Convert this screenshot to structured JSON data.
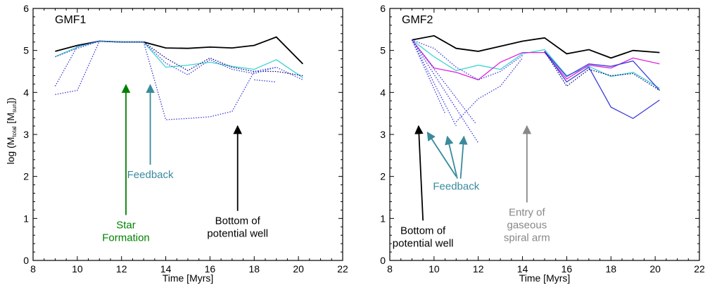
{
  "chart_data": [
    {
      "type": "line",
      "title": "GMF1",
      "xlabel": "Time [Myrs]",
      "ylabel": "log (M_total [M_sun])",
      "xlim": [
        8,
        22
      ],
      "ylim": [
        0,
        6
      ],
      "xticks": [
        "8",
        "10",
        "12",
        "14",
        "16",
        "18",
        "20",
        "22"
      ],
      "yticks": [
        "0",
        "1",
        "2",
        "3",
        "4",
        "5",
        "6"
      ],
      "series": [
        {
          "color": "#000000",
          "style": "solid",
          "x": [
            9,
            10,
            11,
            12,
            13,
            14,
            15,
            16,
            17,
            18,
            19,
            20.2
          ],
          "y": [
            4.98,
            5.12,
            5.22,
            5.2,
            5.2,
            5.06,
            5.05,
            5.08,
            5.06,
            5.12,
            5.32,
            4.68
          ]
        },
        {
          "color": "#3fd4d0",
          "style": "solid",
          "x": [
            9,
            10,
            11,
            12,
            13,
            14,
            15,
            16,
            17,
            18,
            19,
            20.2
          ],
          "y": [
            4.85,
            5.08,
            5.22,
            5.2,
            5.2,
            4.6,
            4.65,
            4.72,
            4.62,
            4.55,
            4.78,
            4.35
          ]
        },
        {
          "color": "#000080",
          "style": "dotted",
          "x": [
            11,
            12,
            13,
            14,
            15,
            16,
            17,
            18,
            19,
            20.2
          ],
          "y": [
            5.22,
            5.2,
            5.2,
            4.82,
            4.52,
            4.82,
            4.6,
            4.5,
            4.5,
            4.4
          ]
        },
        {
          "color": "#3b3bdb",
          "style": "dotted",
          "x": [
            9,
            10,
            11,
            12,
            13,
            14,
            15,
            16,
            17,
            18,
            19,
            20.2
          ],
          "y": [
            4.85,
            5.05,
            5.22,
            5.2,
            5.2,
            4.7,
            4.42,
            4.78,
            4.55,
            4.45,
            4.6,
            4.3
          ]
        },
        {
          "color": "#3b3bdb",
          "style": "dotted",
          "x": [
            9,
            10,
            11
          ],
          "y": [
            3.95,
            4.05,
            5.22
          ]
        },
        {
          "color": "#3b3bdb",
          "style": "dotted",
          "x": [
            9,
            10,
            11
          ],
          "y": [
            4.15,
            5.1,
            5.22
          ]
        },
        {
          "color": "#3b3bdb",
          "style": "dotted",
          "x": [
            13,
            14,
            15,
            16,
            17,
            18,
            19
          ],
          "y": [
            5.2,
            3.35,
            3.38,
            3.42,
            3.55,
            4.5,
            4.6
          ]
        },
        {
          "color": "#3b3bdb",
          "style": "dotted",
          "x": [
            18,
            19
          ],
          "y": [
            4.3,
            4.25
          ]
        }
      ],
      "annotations": [
        {
          "lines": [
            "Star",
            "Formation"
          ],
          "color": "#008000",
          "arrow_tip": [
            12.2,
            4.18
          ],
          "arrow_tail": [
            12.2,
            1.08
          ]
        },
        {
          "lines": [
            "Feedback"
          ],
          "color": "#3a8a9c",
          "arrow_tip": [
            13.3,
            4.18
          ],
          "arrow_tail": [
            13.3,
            2.28
          ]
        },
        {
          "lines": [
            "Bottom  of",
            "potential  well"
          ],
          "color": "#000000",
          "arrow_tip": [
            17.25,
            3.2
          ],
          "arrow_tail": [
            17.25,
            1.18
          ]
        }
      ]
    },
    {
      "type": "line",
      "title": "GMF2",
      "xlabel": "Time [Myrs]",
      "ylabel": "",
      "xlim": [
        8,
        22
      ],
      "ylim": [
        0,
        6
      ],
      "xticks": [
        "8",
        "10",
        "12",
        "14",
        "16",
        "18",
        "20",
        "22"
      ],
      "yticks": [
        "0",
        "1",
        "2",
        "3",
        "4",
        "5",
        "6"
      ],
      "series": [
        {
          "color": "#000000",
          "style": "solid",
          "x": [
            9,
            10,
            11,
            12,
            13,
            14,
            15,
            16,
            17,
            18,
            19,
            20.2
          ],
          "y": [
            5.25,
            5.35,
            5.05,
            4.98,
            5.1,
            5.22,
            5.3,
            4.92,
            5.02,
            4.82,
            5.0,
            4.95
          ]
        },
        {
          "color": "#3fd4d0",
          "style": "solid",
          "x": [
            9,
            10,
            11,
            12,
            13,
            14,
            15,
            16,
            17,
            18,
            19,
            20.2
          ],
          "y": [
            5.25,
            4.85,
            4.52,
            4.65,
            4.55,
            4.92,
            5.02,
            4.4,
            4.62,
            4.38,
            4.48,
            4.1
          ]
        },
        {
          "color": "#dd22dd",
          "style": "solid",
          "x": [
            9,
            10,
            11,
            12,
            13,
            14,
            15,
            16,
            17,
            18,
            19,
            20.2
          ],
          "y": [
            5.25,
            4.58,
            4.48,
            4.3,
            4.72,
            4.95,
            4.95,
            4.32,
            4.65,
            4.58,
            4.82,
            4.68
          ]
        },
        {
          "color": "#3b3bdb",
          "style": "solid",
          "x": [
            15,
            16,
            17,
            18,
            19,
            20.2
          ],
          "y": [
            4.98,
            4.38,
            4.68,
            4.62,
            4.75,
            4.05
          ]
        },
        {
          "color": "#3b3bdb",
          "style": "solid",
          "x": [
            15,
            16,
            17,
            18,
            19,
            20.2
          ],
          "y": [
            4.98,
            4.25,
            4.6,
            3.65,
            3.38,
            3.82
          ]
        },
        {
          "color": "#000080",
          "style": "dotted",
          "x": [
            15,
            16,
            17,
            18,
            19,
            20.2
          ],
          "y": [
            4.98,
            4.15,
            4.55,
            4.4,
            4.45,
            4.05
          ]
        },
        {
          "color": "#3b3bdb",
          "style": "dotted",
          "x": [
            9,
            10.5
          ],
          "y": [
            5.25,
            3.5
          ]
        },
        {
          "color": "#3b3bdb",
          "style": "dotted",
          "x": [
            9,
            11
          ],
          "y": [
            5.25,
            3.2
          ]
        },
        {
          "color": "#3b3bdb",
          "style": "dotted",
          "x": [
            9,
            11.9
          ],
          "y": [
            5.25,
            3.25
          ]
        },
        {
          "color": "#3b3bdb",
          "style": "dotted",
          "x": [
            9,
            12
          ],
          "y": [
            5.25,
            2.8
          ]
        },
        {
          "color": "#3b3bdb",
          "style": "dotted",
          "x": [
            9,
            10,
            11,
            12,
            13,
            14
          ],
          "y": [
            5.25,
            5.05,
            4.6,
            4.3,
            4.5,
            4.88
          ]
        },
        {
          "color": "#3b3bdb",
          "style": "dotted",
          "x": [
            11,
            12,
            13,
            14
          ],
          "y": [
            3.3,
            3.85,
            4.15,
            4.82
          ]
        }
      ],
      "annotations": [
        {
          "lines": [
            "Bottom  of",
            "potential  well"
          ],
          "color": "#000000",
          "arrow_tip": [
            9.3,
            3.2
          ],
          "arrow_tail": [
            9.5,
            0.95
          ]
        },
        {
          "lines": [
            "Feedback"
          ],
          "color": "#3a8a9c",
          "arrow_tip": [
            9.7,
            3.05
          ],
          "arrow_tail": [
            11.0,
            2.0
          ],
          "extra_arrows": [
            {
              "tip": [
                10.6,
                2.95
              ],
              "tail": [
                11.05,
                1.95
              ]
            },
            {
              "tip": [
                11.35,
                2.95
              ],
              "tail": [
                11.2,
                1.95
              ]
            }
          ]
        },
        {
          "lines": [
            "Entry  of",
            "gaseous",
            "spiral arm"
          ],
          "color": "#888888",
          "arrow_tip": [
            14.2,
            3.2
          ],
          "arrow_tail": [
            14.2,
            1.38
          ]
        }
      ]
    }
  ]
}
